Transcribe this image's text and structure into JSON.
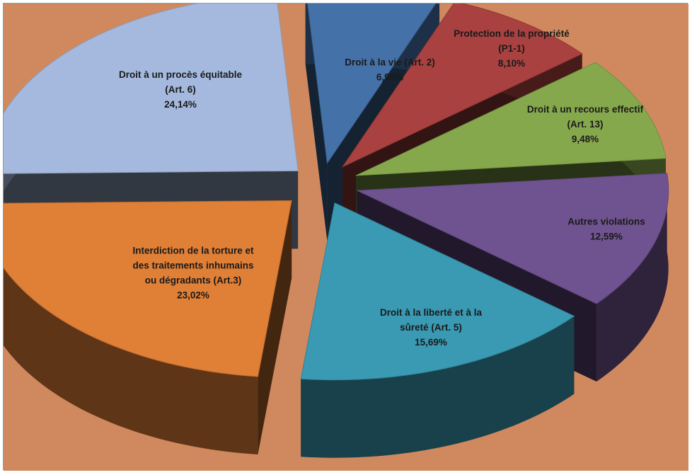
{
  "chart_data": {
    "type": "pie",
    "style": "3d-exploded",
    "background_color": "#D0895E",
    "slices": [
      {
        "lines": [
          "Droit à la vie (Art. 2)",
          "6,98%"
        ],
        "value": 6.98,
        "color": "#4472A8"
      },
      {
        "lines": [
          "Protection de la propriété",
          "(P1-1)",
          "8,10%"
        ],
        "value": 8.1,
        "color": "#A8413F"
      },
      {
        "lines": [
          "Droit à un recours effectif",
          "(Art. 13)",
          "9,48%"
        ],
        "value": 9.48,
        "color": "#86A84D"
      },
      {
        "lines": [
          "Autres violations",
          "12,59%"
        ],
        "value": 12.59,
        "color": "#6F5390"
      },
      {
        "lines": [
          "Droit à la liberté et à la",
          "sûreté (Art. 5)",
          "15,69%"
        ],
        "value": 15.69,
        "color": "#3A9AB3"
      },
      {
        "lines": [
          "Interdiction de la torture et",
          "des traitements inhumains",
          "ou dégradants (Art.3)",
          "23,02%"
        ],
        "value": 23.02,
        "color": "#E07F36"
      },
      {
        "lines": [
          "Droit à un procès équitable",
          "(Art. 6)",
          "24,14%"
        ],
        "value": 24.14,
        "color": "#A4B9DD"
      }
    ]
  }
}
